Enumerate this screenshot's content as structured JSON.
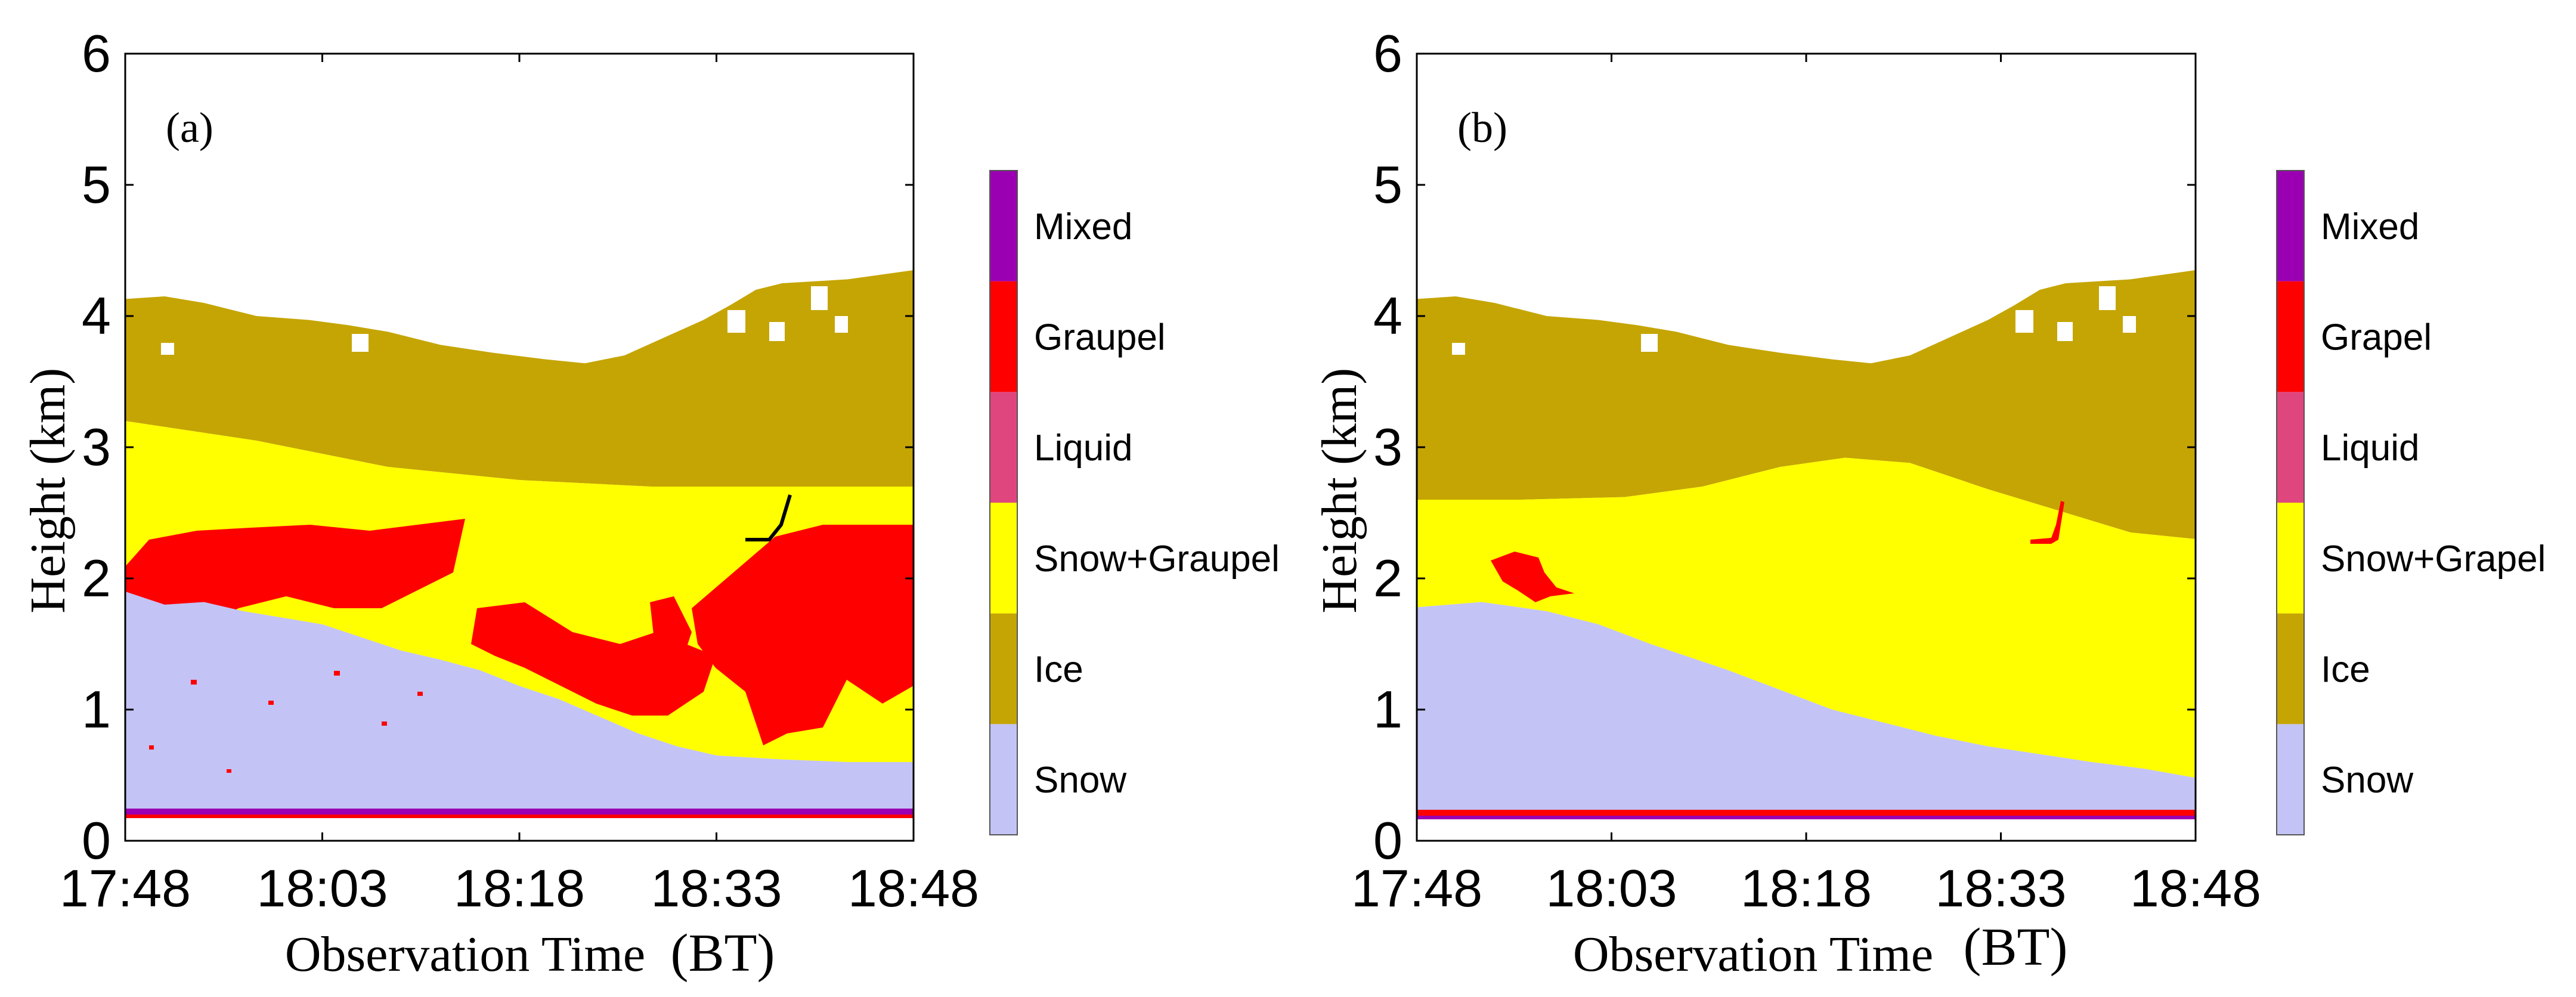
{
  "chart_data": [
    {
      "type": "heatmap",
      "panel_label": "(a)",
      "xlabel": "Observation Time",
      "xunit": "(BT)",
      "ylabel": "Height",
      "yunit": "(km)",
      "x_ticks": [
        "17:48",
        "18:03",
        "18:18",
        "18:33",
        "18:48"
      ],
      "xlim": [
        0,
        60
      ],
      "y_ticks": [
        "0",
        "1",
        "2",
        "3",
        "4",
        "5",
        "6"
      ],
      "ylim": [
        0,
        6
      ],
      "grid": false,
      "legend": "colorbar-right",
      "categories": [
        "Snow",
        "Ice",
        "Snow+Graupel",
        "Liquid",
        "Graupel",
        "Mixed"
      ],
      "colors": [
        "#c3c3f5",
        "#c5a503",
        "#ffff00",
        "#e0467e",
        "#ff0000",
        "#9a00b2"
      ],
      "echo_top_km": [
        [
          0,
          4.13
        ],
        [
          3,
          4.15
        ],
        [
          6,
          4.1
        ],
        [
          10,
          4.0
        ],
        [
          14,
          3.97
        ],
        [
          17,
          3.93
        ],
        [
          20,
          3.88
        ],
        [
          24,
          3.78
        ],
        [
          28,
          3.72
        ],
        [
          32,
          3.67
        ],
        [
          35,
          3.64
        ],
        [
          38,
          3.7
        ],
        [
          42,
          3.88
        ],
        [
          44,
          3.97
        ],
        [
          46,
          4.08
        ],
        [
          48,
          4.2
        ],
        [
          50,
          4.25
        ],
        [
          55,
          4.28
        ],
        [
          60,
          4.35
        ]
      ],
      "ice_base_km": [
        [
          0,
          3.2
        ],
        [
          10,
          3.05
        ],
        [
          20,
          2.85
        ],
        [
          30,
          2.75
        ],
        [
          40,
          2.7
        ],
        [
          50,
          2.7
        ],
        [
          60,
          2.7
        ]
      ],
      "snow_top_km": [
        [
          0,
          1.9
        ],
        [
          3,
          1.8
        ],
        [
          6,
          1.82
        ],
        [
          9,
          1.75
        ],
        [
          12,
          1.7
        ],
        [
          15,
          1.65
        ],
        [
          18,
          1.55
        ],
        [
          21,
          1.45
        ],
        [
          24,
          1.38
        ],
        [
          27,
          1.3
        ],
        [
          30,
          1.18
        ],
        [
          33,
          1.08
        ],
        [
          36,
          0.95
        ],
        [
          39,
          0.82
        ],
        [
          42,
          0.72
        ],
        [
          45,
          0.65
        ],
        [
          50,
          0.62
        ],
        [
          55,
          0.6
        ],
        [
          60,
          0.6
        ]
      ]
    },
    {
      "type": "heatmap",
      "panel_label": "(b)",
      "xlabel": "Observation Time",
      "xunit": "(BT)",
      "ylabel": "Height",
      "yunit": "(km)",
      "x_ticks": [
        "17:48",
        "18:03",
        "18:18",
        "18:33",
        "18:48"
      ],
      "xlim": [
        0,
        60
      ],
      "y_ticks": [
        "0",
        "1",
        "2",
        "3",
        "4",
        "5",
        "6"
      ],
      "ylim": [
        0,
        6
      ],
      "grid": false,
      "legend": "colorbar-right",
      "categories": [
        "Snow",
        "Ice",
        "Snow+Grapel",
        "Liquid",
        "Grapel",
        "Mixed"
      ],
      "colors": [
        "#c3c3f5",
        "#c5a503",
        "#ffff00",
        "#e0467e",
        "#ff0000",
        "#9a00b2"
      ],
      "echo_top_km": [
        [
          0,
          4.13
        ],
        [
          3,
          4.15
        ],
        [
          6,
          4.1
        ],
        [
          10,
          4.0
        ],
        [
          14,
          3.97
        ],
        [
          17,
          3.93
        ],
        [
          20,
          3.88
        ],
        [
          24,
          3.78
        ],
        [
          28,
          3.72
        ],
        [
          32,
          3.67
        ],
        [
          35,
          3.64
        ],
        [
          38,
          3.7
        ],
        [
          42,
          3.88
        ],
        [
          44,
          3.97
        ],
        [
          46,
          4.08
        ],
        [
          48,
          4.2
        ],
        [
          50,
          4.25
        ],
        [
          55,
          4.28
        ],
        [
          60,
          4.35
        ]
      ],
      "ice_base_km": [
        [
          0,
          2.6
        ],
        [
          8,
          2.6
        ],
        [
          16,
          2.62
        ],
        [
          22,
          2.7
        ],
        [
          28,
          2.85
        ],
        [
          33,
          2.92
        ],
        [
          38,
          2.88
        ],
        [
          44,
          2.68
        ],
        [
          50,
          2.5
        ],
        [
          55,
          2.35
        ],
        [
          60,
          2.3
        ]
      ],
      "snow_top_km": [
        [
          0,
          1.78
        ],
        [
          5,
          1.82
        ],
        [
          10,
          1.75
        ],
        [
          14,
          1.65
        ],
        [
          18,
          1.5
        ],
        [
          21,
          1.4
        ],
        [
          24,
          1.3
        ],
        [
          28,
          1.15
        ],
        [
          32,
          1.0
        ],
        [
          36,
          0.9
        ],
        [
          40,
          0.8
        ],
        [
          44,
          0.72
        ],
        [
          48,
          0.66
        ],
        [
          52,
          0.6
        ],
        [
          56,
          0.55
        ],
        [
          60,
          0.48
        ]
      ]
    }
  ]
}
